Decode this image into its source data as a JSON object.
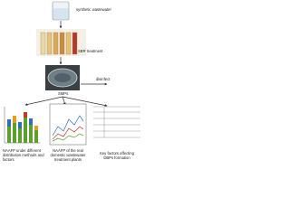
{
  "steps": {
    "influent": "synthetic wastewater",
    "treatment": "SBR treatment",
    "product": "SMPs",
    "action": "disinfect"
  },
  "panels": [
    {
      "caption": [
        "NAAFP under  different",
        "distribution  methods  and",
        "factors"
      ]
    },
    {
      "caption": [
        "NAAFP of the real",
        "domestic wastewater",
        "treatment plants"
      ]
    },
    {
      "caption": [
        "Key factors affecting",
        "DBPs formation"
      ]
    }
  ]
}
